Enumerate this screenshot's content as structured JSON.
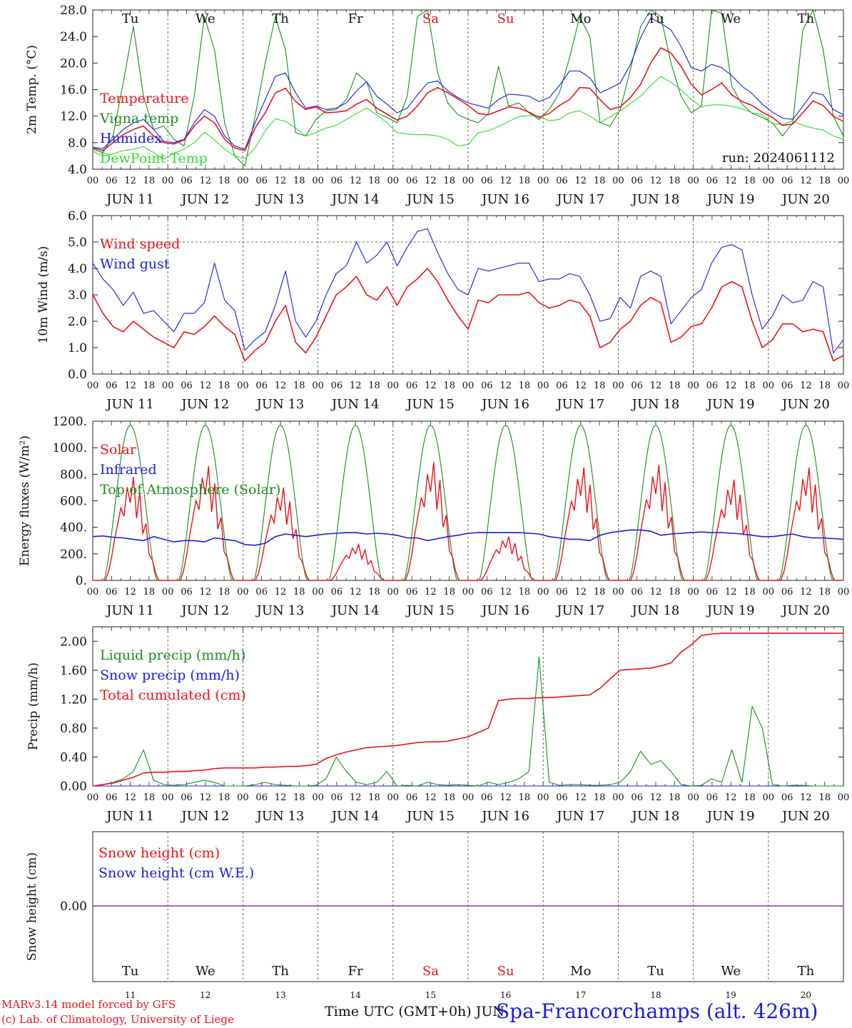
{
  "footer": {
    "credit1": "MARv3.14 model forced by GFS",
    "credit2": "(c) Lab. of Climatology, University of Liege",
    "xtitle": "Time UTC (GMT+0h) JUN",
    "station": "Spa-Francorchamps (alt. 426m)"
  },
  "colors": {
    "red": "#e8141c",
    "green": "#1c8c1c",
    "blue": "#1c1cdc",
    "lightgreen": "#2cdc2c",
    "purple": "#8c3c9c",
    "grid": "#444444"
  },
  "x_axis": {
    "hour_ticks": [
      "00",
      "06",
      "12",
      "18"
    ],
    "last_tick": "00",
    "days": [
      "JUN 11",
      "JUN 12",
      "JUN 13",
      "JUN 14",
      "JUN 15",
      "JUN 16",
      "JUN 17",
      "JUN 18",
      "JUN 19",
      "JUN 20"
    ],
    "weekdays": [
      "Tu",
      "We",
      "Th",
      "Fr",
      "Sa",
      "Su",
      "Mo",
      "Tu",
      "We",
      "Th"
    ],
    "weekday_colors": [
      "black",
      "black",
      "black",
      "black",
      "red",
      "red",
      "black",
      "black",
      "black",
      "black"
    ],
    "day_numbers": [
      "11",
      "12",
      "13",
      "14",
      "15",
      "16",
      "17",
      "18",
      "19",
      "20"
    ]
  },
  "chart_data": [
    {
      "type": "line",
      "ylabel": "2m Temp. (°C)",
      "ylim": [
        4,
        28
      ],
      "yticks": [
        "4.0",
        "8.0",
        "12.0",
        "16.0",
        "20.0",
        "24.0",
        "28.0"
      ],
      "annotation": "run: 2024061112",
      "series": [
        {
          "name": "Temperature",
          "color": "red",
          "values": [
            7.2,
            6.8,
            8,
            9.2,
            10,
            10.5,
            9,
            8,
            7.8,
            8.4,
            10.5,
            12,
            11,
            8.5,
            7.2,
            6.8,
            10.2,
            12.5,
            15.5,
            16.2,
            14.2,
            13,
            13.4,
            12.5,
            12.6,
            12.8,
            13.8,
            14.5,
            13.2,
            12.3,
            11.4,
            12,
            13.5,
            15.5,
            16.3,
            15.5,
            14.6,
            13.6,
            12.4,
            12.2,
            12.8,
            13.4,
            13.2,
            12.6,
            11.8,
            12.4,
            13.6,
            14.5,
            16.3,
            16.2,
            14.5,
            13.0,
            13.4,
            14.8,
            16.8,
            20,
            22.3,
            21.5,
            19.5,
            16.8,
            15.2,
            16,
            17,
            15.2,
            14.2,
            13.6,
            12.6,
            11.8,
            10.6,
            10.8,
            12.5,
            14.3,
            13.6,
            12.0,
            11.2
          ]
        },
        {
          "name": "Vigna temp",
          "color": "green",
          "values": [
            7,
            6.5,
            9,
            17,
            25.5,
            15,
            10,
            10.5,
            8.5,
            7.5,
            15,
            27,
            22,
            11,
            6,
            4.5,
            12,
            20,
            27,
            22,
            9.5,
            9,
            11.5,
            12.8,
            13,
            14.5,
            18.5,
            17.2,
            12.5,
            11.8,
            11,
            15,
            27,
            28,
            18.5,
            14,
            12.2,
            11.5,
            11,
            12.4,
            19.5,
            13.5,
            14,
            12.5,
            11.5,
            13,
            15.5,
            20.8,
            27,
            24,
            11,
            10.5,
            13,
            19,
            25.5,
            28,
            27,
            20,
            15,
            12.5,
            13.5,
            28,
            27.5,
            16.5,
            13.8,
            12.4,
            11.8,
            11,
            9,
            11,
            25,
            28,
            22,
            12,
            9
          ]
        },
        {
          "name": "Humidex",
          "color": "blue",
          "values": [
            7.3,
            7.1,
            8.5,
            10,
            11,
            11.5,
            10,
            8.2,
            8,
            8.5,
            11,
            13,
            12,
            9,
            7.5,
            7,
            11,
            14.5,
            18,
            18.5,
            15.5,
            13.2,
            13.5,
            13,
            13.2,
            14,
            15.8,
            17.2,
            15,
            13.8,
            12.5,
            13.2,
            15.2,
            17,
            17.3,
            15.8,
            14.8,
            14,
            13.6,
            13.2,
            14.5,
            15.3,
            15.2,
            15,
            14.2,
            14.8,
            16.6,
            18.8,
            18.8,
            17.8,
            15.5,
            16.2,
            17,
            19.8,
            23.8,
            26.8,
            26,
            25,
            22.5,
            19.3,
            18.8,
            19.8,
            19.3,
            18.1,
            16.5,
            15.4,
            13.8,
            12.6,
            11.7,
            11.5,
            13.5,
            15.6,
            15.2,
            13.0,
            12.2
          ]
        },
        {
          "name": "DewPoint Temp",
          "color": "lightgreen",
          "values": [
            6.7,
            6,
            6.3,
            6.8,
            7,
            7.4,
            6.5,
            5.5,
            6.4,
            7,
            8,
            9.6,
            8.4,
            7,
            6,
            5.6,
            7.2,
            9.8,
            11.6,
            11.2,
            10.2,
            9,
            9.5,
            10.2,
            10.6,
            11.5,
            12.4,
            13.2,
            12.2,
            11,
            9.5,
            9.3,
            9.2,
            9.2,
            9,
            8.5,
            7.5,
            7.7,
            9.5,
            9.8,
            10.4,
            11.2,
            11.9,
            12.1,
            12.0,
            11.3,
            11.5,
            12.5,
            12.8,
            12.0,
            11.0,
            11.9,
            12.8,
            13.9,
            15.0,
            16.6,
            18.0,
            17.1,
            16.0,
            14.5,
            13.4,
            13.7,
            13.7,
            13.5,
            13.1,
            12.5,
            12.2,
            10.9,
            10.7,
            11.3,
            10.6,
            10.2,
            9.9,
            9.0,
            8.5
          ]
        }
      ]
    },
    {
      "type": "line",
      "ylabel": "10m Wind (m/s)",
      "ylim": [
        0,
        6
      ],
      "yticks": [
        "0.0",
        "1.0",
        "2.0",
        "3.0",
        "4.0",
        "5.0",
        "6.0"
      ],
      "reference_line": 5,
      "series": [
        {
          "name": "Wind speed",
          "color": "red",
          "values": [
            3.0,
            2.3,
            1.8,
            1.6,
            2.0,
            1.7,
            1.4,
            1.2,
            1.0,
            1.6,
            1.5,
            1.8,
            2.2,
            1.8,
            1.5,
            0.5,
            0.9,
            1.2,
            2.0,
            2.6,
            1.2,
            0.8,
            1.4,
            2.2,
            3.0,
            3.3,
            3.7,
            3.0,
            2.8,
            3.3,
            2.6,
            3.3,
            3.6,
            4.0,
            3.5,
            2.8,
            2.2,
            1.7,
            2.8,
            2.7,
            3.0,
            3.0,
            3.0,
            3.1,
            2.7,
            2.5,
            2.6,
            2.8,
            2.7,
            2.2,
            1.0,
            1.2,
            1.7,
            2.0,
            2.6,
            2.9,
            2.7,
            1.2,
            1.4,
            1.8,
            1.9,
            2.5,
            3.3,
            3.5,
            3.3,
            2.0,
            1.0,
            1.3,
            1.9,
            1.9,
            1.6,
            1.7,
            1.6,
            0.5,
            0.7
          ]
        },
        {
          "name": "Wind gust",
          "color": "blue",
          "values": [
            4.2,
            3.6,
            3.2,
            2.6,
            3.1,
            2.3,
            2.4,
            2.0,
            1.6,
            2.3,
            2.3,
            2.7,
            4.2,
            2.8,
            2.4,
            0.9,
            1.3,
            1.6,
            2.6,
            3.9,
            2.0,
            1.4,
            2.0,
            3.0,
            3.8,
            4.1,
            5.0,
            4.2,
            4.5,
            5.0,
            4.1,
            4.8,
            5.4,
            5.5,
            4.6,
            3.8,
            3.2,
            3.0,
            4.0,
            3.9,
            4.0,
            4.1,
            4.2,
            4.2,
            3.5,
            3.6,
            3.6,
            3.8,
            3.7,
            3.0,
            2.0,
            2.1,
            2.9,
            2.5,
            3.7,
            3.9,
            3.7,
            1.9,
            2.4,
            2.9,
            3.2,
            4.2,
            4.8,
            4.9,
            4.7,
            3.0,
            1.7,
            2.2,
            3.0,
            2.7,
            2.8,
            3.5,
            3.3,
            0.8,
            1.3
          ]
        }
      ]
    },
    {
      "type": "line",
      "ylabel": "Energy fluxes (W/m²)",
      "ylim": [
        0,
        1200
      ],
      "yticks": [
        "0.",
        "200.",
        "400.",
        "600.",
        "800.",
        "1000.",
        "1200."
      ],
      "series": [
        {
          "name": "Solar",
          "color": "red",
          "day_peaks": [
            780,
            860,
            700,
            270,
            890,
            330,
            850,
            870,
            760,
            850
          ]
        },
        {
          "name": "Infrared",
          "color": "blue",
          "values": [
            330,
            335,
            325,
            320,
            310,
            300,
            330,
            310,
            290,
            300,
            300,
            290,
            320,
            310,
            300,
            270,
            265,
            280,
            330,
            350,
            340,
            330,
            340,
            350,
            355,
            360,
            360,
            350,
            355,
            350,
            340,
            320,
            320,
            300,
            315,
            330,
            340,
            355,
            360,
            360,
            360,
            360,
            360,
            355,
            350,
            330,
            320,
            310,
            310,
            300,
            340,
            360,
            370,
            380,
            380,
            370,
            340,
            350,
            355,
            360,
            365,
            360,
            360,
            355,
            350,
            340,
            330,
            330,
            340,
            350,
            330,
            320,
            320,
            315,
            310
          ]
        },
        {
          "name": "Top of Atmosphere (Solar)",
          "color": "green",
          "day_peak": 1170
        }
      ]
    },
    {
      "type": "line",
      "ylabel": "Precip (mm/h)",
      "ylim": [
        0,
        2.2
      ],
      "yticks": [
        "0.00",
        "0.40",
        "0.80",
        "1.20",
        "1.60",
        "2.00"
      ],
      "series": [
        {
          "name": "Liquid precip (mm/h)",
          "color": "green",
          "values": [
            0,
            0.02,
            0.05,
            0.1,
            0.2,
            0.5,
            0.08,
            0.02,
            0.01,
            0.02,
            0.05,
            0.08,
            0.05,
            0,
            0,
            0,
            0.02,
            0.05,
            0.02,
            0.01,
            0,
            0,
            0.01,
            0.1,
            0.4,
            0.2,
            0.05,
            0.02,
            0.05,
            0.2,
            0,
            0.01,
            0,
            0.05,
            0.02,
            0.01,
            0.02,
            0.01,
            0,
            0.05,
            0.02,
            0.05,
            0.1,
            0.2,
            1.78,
            0.05,
            0.01,
            0.02,
            0.02,
            0.01,
            0.01,
            0.02,
            0.05,
            0.2,
            0.48,
            0.3,
            0.35,
            0.2,
            0.02,
            0,
            0.01,
            0.1,
            0.05,
            0.5,
            0.05,
            1.1,
            0.8,
            0.02,
            0,
            0.01,
            0.01,
            0,
            0,
            0,
            0
          ]
        },
        {
          "name": "Snow precip (mm/h)",
          "color": "blue",
          "values": [
            0,
            0,
            0,
            0,
            0,
            0,
            0,
            0,
            0,
            0,
            0,
            0,
            0,
            0,
            0,
            0,
            0,
            0,
            0,
            0,
            0,
            0,
            0,
            0,
            0,
            0,
            0,
            0,
            0,
            0,
            0,
            0,
            0,
            0,
            0,
            0,
            0,
            0,
            0,
            0,
            0,
            0,
            0,
            0,
            0,
            0,
            0,
            0,
            0,
            0,
            0,
            0,
            0,
            0,
            0,
            0,
            0,
            0,
            0,
            0,
            0,
            0,
            0,
            0,
            0,
            0,
            0,
            0,
            0,
            0,
            0,
            0,
            0,
            0,
            0
          ]
        },
        {
          "name": "Total cumulated (cm)",
          "color": "red",
          "values": [
            0,
            0.02,
            0.04,
            0.08,
            0.12,
            0.18,
            0.19,
            0.19,
            0.2,
            0.2,
            0.21,
            0.22,
            0.24,
            0.25,
            0.25,
            0.25,
            0.25,
            0.26,
            0.26,
            0.27,
            0.27,
            0.28,
            0.3,
            0.38,
            0.43,
            0.47,
            0.5,
            0.53,
            0.54,
            0.55,
            0.56,
            0.58,
            0.6,
            0.61,
            0.61,
            0.62,
            0.65,
            0.68,
            0.74,
            0.8,
            1.18,
            1.2,
            1.21,
            1.21,
            1.22,
            1.22,
            1.23,
            1.24,
            1.25,
            1.26,
            1.35,
            1.48,
            1.6,
            1.61,
            1.62,
            1.63,
            1.66,
            1.7,
            1.85,
            1.95,
            2.08,
            2.1,
            2.11,
            2.11,
            2.11,
            2.11,
            2.11,
            2.11,
            2.11,
            2.11,
            2.11,
            2.11,
            2.11,
            2.11,
            2.11
          ]
        }
      ]
    },
    {
      "type": "line",
      "ylabel": "Snow height (cm)",
      "ytick": "0.00",
      "series": [
        {
          "name": "Snow height (cm)",
          "color": "red",
          "value": 0
        },
        {
          "name": "Snow height (cm W.E.)",
          "color": "blue",
          "value": 0
        }
      ]
    }
  ]
}
